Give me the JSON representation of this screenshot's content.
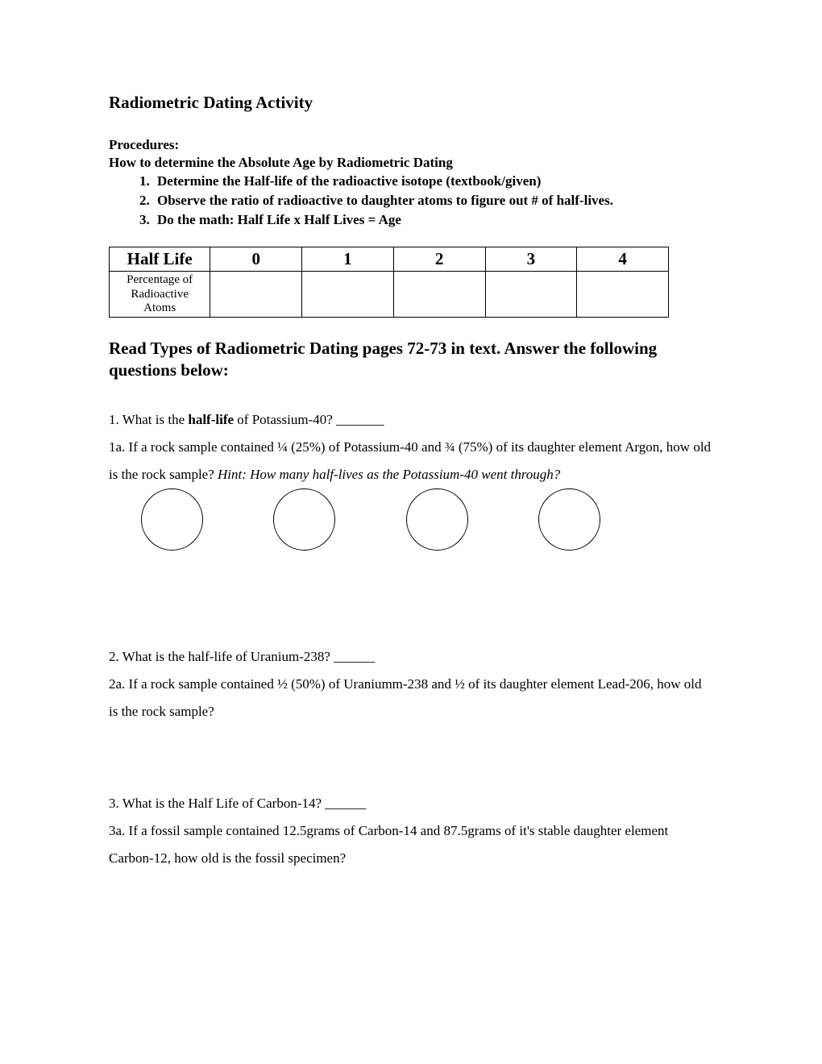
{
  "title": "Radiometric Dating Activity",
  "procedures": {
    "label": "Procedures:",
    "subtitle": "How to determine the Absolute Age by Radiometric Dating",
    "steps": [
      "Determine the Half-life of the radioactive isotope (textbook/given)",
      "Observe the ratio of radioactive to daughter atoms to figure out # of half-lives.",
      "Do the math: Half Life x Half Lives = Age"
    ]
  },
  "table": {
    "header_label": "Half Life",
    "columns": [
      "0",
      "1",
      "2",
      "3",
      "4"
    ],
    "row_label_line1": "Percentage of",
    "row_label_line2": "Radioactive",
    "row_label_line3": "Atoms",
    "cells": [
      "",
      "",
      "",
      "",
      ""
    ]
  },
  "section_heading": "Read Types of Radiometric Dating pages 72-73 in text. Answer the following questions below:",
  "q1": {
    "prefix": "1. What is the ",
    "bold": "half-life",
    "suffix": " of Potassium-40? _______"
  },
  "q1a": {
    "part1": "1a. If a rock sample contained ¼ (25%) of Potassium-40 and ¾ (75%) of its daughter element Argon, how old is the rock sample? ",
    "hint": "Hint: How many half-lives as the Potassium-40 went through?"
  },
  "q2": {
    "text": "2. What is the half-life of Uranium-238? ______"
  },
  "q2a": {
    "text": "2a. If a rock sample contained ½ (50%) of Uraniumm-238 and ½ of its daughter element Lead-206, how old is the rock sample?"
  },
  "q3": {
    "text": "3. What is the Half Life of Carbon-14?  ______"
  },
  "q3a": {
    "text": "3a. If a fossil sample contained 12.5grams of Carbon-14 and 87.5grams of it's stable daughter element Carbon-12, how old is the fossil specimen?"
  },
  "style": {
    "text_color": "#000000",
    "background_color": "#ffffff"
  }
}
